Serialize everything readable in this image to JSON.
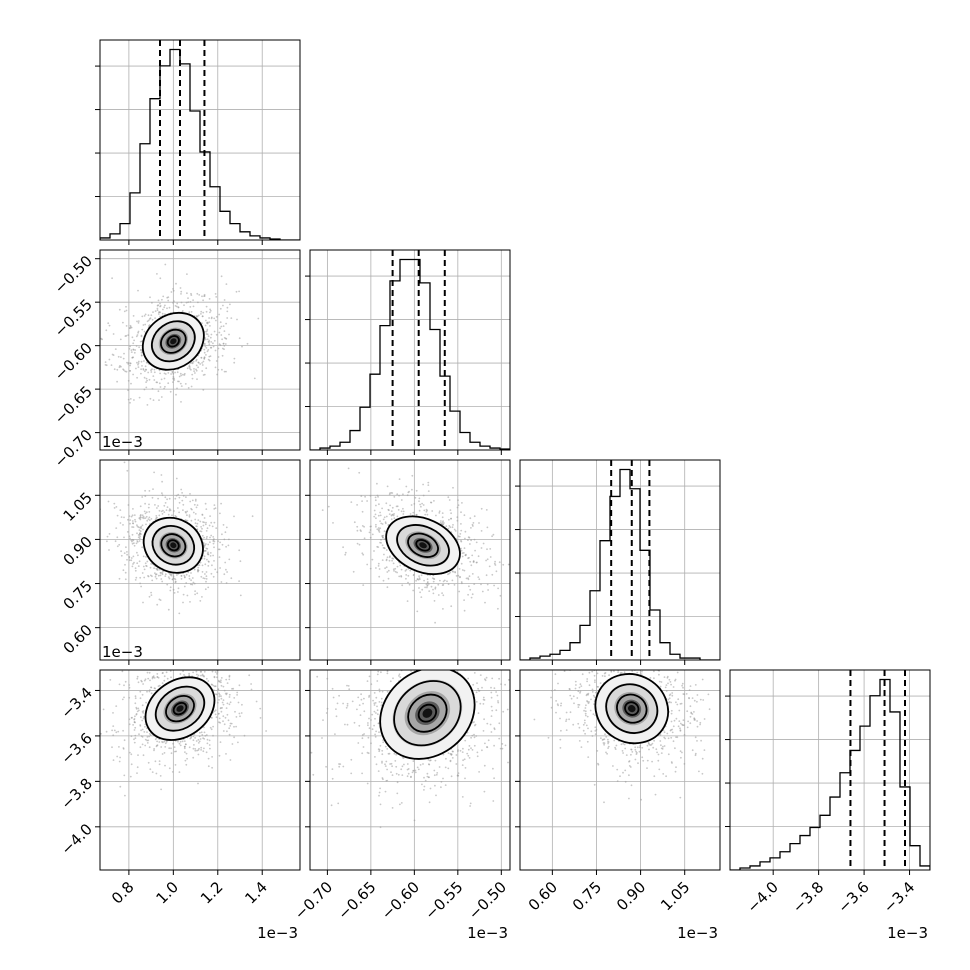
{
  "figure": {
    "type": "corner",
    "offset_label": "1e−3"
  },
  "chart_data": {
    "type": "corner",
    "n_params": 4,
    "parameters": [
      {
        "ticks": [
          "0.8",
          "1.0",
          "1.2",
          "1.4"
        ],
        "tick_values": [
          0.8,
          1.0,
          1.2,
          1.4
        ],
        "range": [
          0.67,
          1.57
        ],
        "quantiles": [
          0.94,
          1.03,
          1.14
        ],
        "hist": [
          0.01,
          0.03,
          0.08,
          0.23,
          0.47,
          0.69,
          0.85,
          0.93,
          0.86,
          0.63,
          0.43,
          0.26,
          0.14,
          0.08,
          0.04,
          0.02,
          0.01,
          0.005,
          0.0,
          0.0
        ]
      },
      {
        "ticks": [
          "−0.70",
          "−0.65",
          "−0.60",
          "−0.55",
          "−0.50"
        ],
        "tick_values": [
          -0.7,
          -0.65,
          -0.6,
          -0.55,
          -0.5
        ],
        "range": [
          -0.72,
          -0.49
        ],
        "quantiles": [
          -0.625,
          -0.595,
          -0.565
        ],
        "hist": [
          0.0,
          0.01,
          0.02,
          0.04,
          0.1,
          0.22,
          0.39,
          0.64,
          0.87,
          0.98,
          0.98,
          0.86,
          0.62,
          0.38,
          0.2,
          0.09,
          0.04,
          0.02,
          0.01,
          0.005
        ]
      },
      {
        "ticks": [
          "0.60",
          "0.75",
          "0.90",
          "1.05"
        ],
        "tick_values": [
          0.6,
          0.75,
          0.9,
          1.05
        ],
        "range": [
          0.49,
          1.17
        ],
        "quantiles": [
          0.8,
          0.87,
          0.93
        ],
        "hist": [
          0.0,
          0.01,
          0.02,
          0.03,
          0.05,
          0.09,
          0.18,
          0.36,
          0.62,
          0.85,
          0.99,
          0.89,
          0.57,
          0.26,
          0.09,
          0.03,
          0.01,
          0.01,
          0.0,
          0.0
        ]
      },
      {
        "ticks": [
          "−4.0",
          "−3.8",
          "−3.6",
          "−3.4"
        ],
        "tick_values": [
          -4.0,
          -3.8,
          -3.6,
          -3.4
        ],
        "range": [
          -4.19,
          -3.31
        ],
        "quantiles": [
          -3.66,
          -3.51,
          -3.42
        ],
        "hist": [
          0.0,
          0.01,
          0.02,
          0.04,
          0.06,
          0.09,
          0.13,
          0.17,
          0.21,
          0.27,
          0.36,
          0.48,
          0.59,
          0.71,
          0.86,
          0.94,
          0.78,
          0.41,
          0.12,
          0.02
        ]
      }
    ],
    "pairs": [
      {
        "x": 0,
        "y": 1,
        "center": [
          1.0,
          -0.595
        ],
        "axes": [
          0.16,
          0.05
        ],
        "angle_deg": 35,
        "density": "upper-right tail"
      },
      {
        "x": 0,
        "y": 2,
        "center": [
          1.0,
          0.88
        ],
        "axes": [
          0.16,
          0.14
        ],
        "angle_deg": -30,
        "density": "lower-right tail"
      },
      {
        "x": 1,
        "y": 2,
        "center": [
          -0.59,
          0.88
        ],
        "axes": [
          0.06,
          0.12
        ],
        "angle_deg": -25,
        "density": "lower-right tail"
      },
      {
        "x": 0,
        "y": 3,
        "center": [
          1.03,
          -3.48
        ],
        "axes": [
          0.17,
          0.22
        ],
        "angle_deg": 35,
        "density": "lower-left tail"
      },
      {
        "x": 1,
        "y": 3,
        "center": [
          -0.585,
          -3.5
        ],
        "axes": [
          0.065,
          0.3
        ],
        "angle_deg": 40,
        "density": "lower-left tail"
      },
      {
        "x": 2,
        "y": 3,
        "center": [
          0.87,
          -3.48
        ],
        "axes": [
          0.17,
          0.2
        ],
        "angle_deg": -30,
        "density": "lower-right tail"
      }
    ]
  }
}
